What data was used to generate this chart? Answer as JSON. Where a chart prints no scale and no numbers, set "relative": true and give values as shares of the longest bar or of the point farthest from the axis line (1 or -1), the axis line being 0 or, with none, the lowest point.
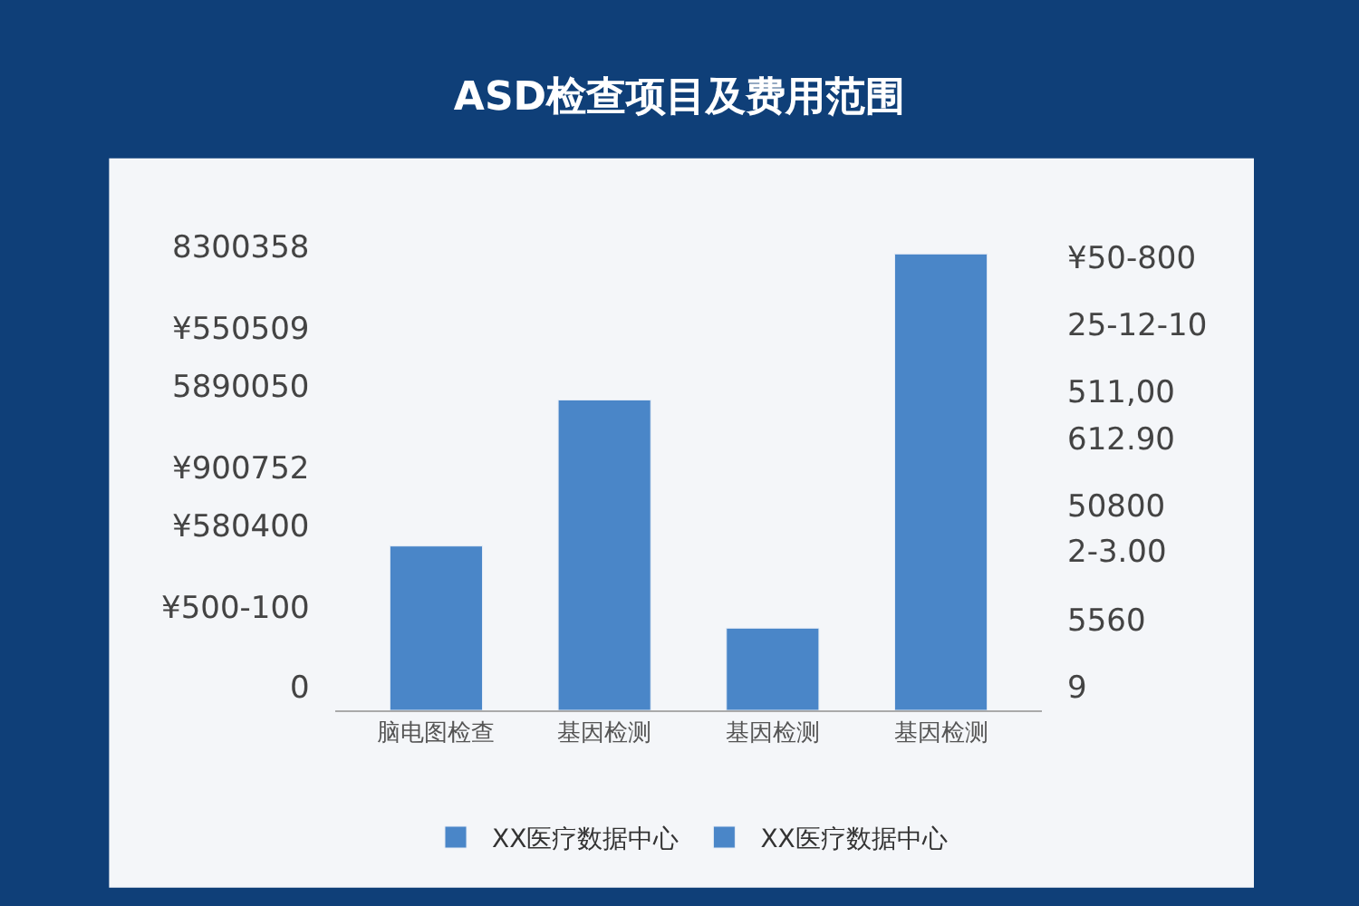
{
  "chart_data": {
    "type": "bar",
    "title": "ASD检查项目及费用范围",
    "relative": true,
    "categories": [
      "脑电图检查",
      "基因检测",
      "基因检测",
      "基因检测"
    ],
    "series": [
      {
        "name": "XX医疗数据中心",
        "color": "#4a86c8",
        "values": [
          0.36,
          0.68,
          null,
          null
        ]
      },
      {
        "name": "XX医疗数据中心",
        "color": "#4a86c8",
        "values": [
          null,
          null,
          0.18,
          1
        ]
      }
    ],
    "annotations": [
      "8300358",
      "¥550509",
      "5890050",
      "¥900752",
      "¥580400",
      "¥500-100",
      "0",
      "¥50-800",
      "25-12-10",
      "511,00",
      "612.90",
      "50800",
      "2-3.00",
      "5560",
      "9"
    ],
    "grid": false,
    "legend": "bottom"
  }
}
